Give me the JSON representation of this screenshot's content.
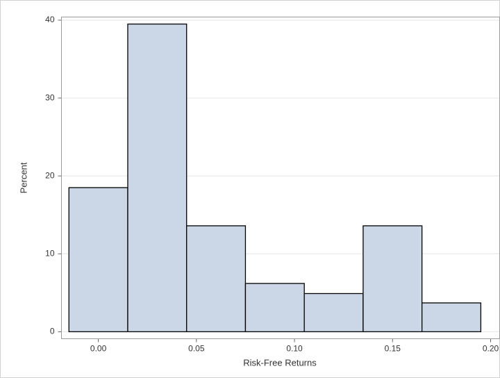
{
  "chart_data": {
    "type": "histogram",
    "x_label": "Risk-Free Returns",
    "y_label": "Percent",
    "bins": [
      -0.015,
      0.015,
      0.045,
      0.075,
      0.105,
      0.135,
      0.165,
      0.195
    ],
    "values": [
      18.5,
      39.5,
      13.6,
      6.2,
      4.9,
      13.6,
      3.7
    ],
    "color": "#cbd6e6",
    "edge_color": "#000000",
    "xlim": [
      -0.0188,
      0.2046
    ],
    "xticks": [
      {
        "value": 0,
        "label": "0.00"
      },
      {
        "value": 0.05,
        "label": "0.05"
      },
      {
        "value": 0.1,
        "label": "0.10"
      },
      {
        "value": 0.15,
        "label": "0.15"
      },
      {
        "value": 0.2,
        "label": "0.20"
      }
    ],
    "ylim": [
      -0.9,
      40.4
    ],
    "yticks": [
      0,
      10,
      20,
      30,
      40
    ],
    "grid": true
  }
}
